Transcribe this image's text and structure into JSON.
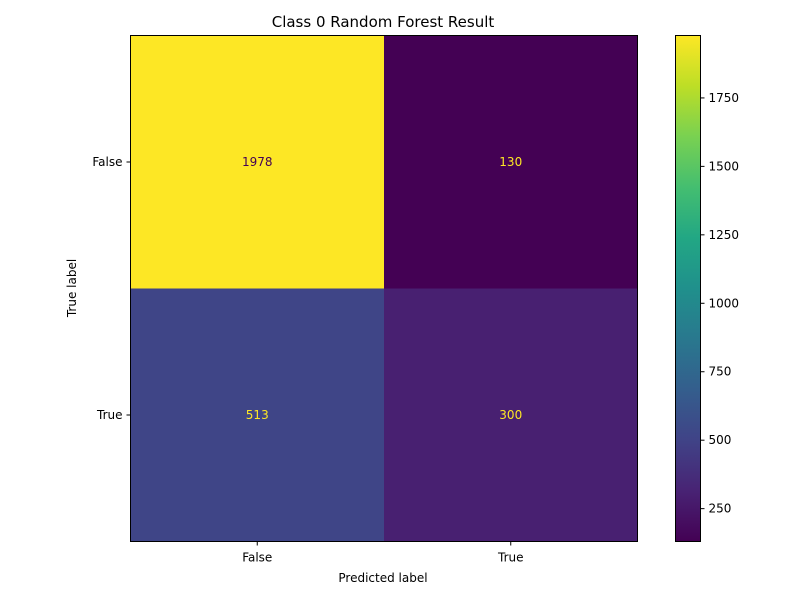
{
  "chart_data": {
    "type": "heatmap",
    "title": "Class 0 Random Forest Result",
    "xlabel": "Predicted label",
    "ylabel": "True label",
    "x_categories": [
      "False",
      "True"
    ],
    "y_categories": [
      "False",
      "True"
    ],
    "matrix": [
      [
        1978,
        130
      ],
      [
        513,
        300
      ]
    ],
    "colormap": "viridis",
    "colorbar": {
      "min": 130,
      "max": 1978,
      "ticks": [
        250,
        500,
        750,
        1000,
        1250,
        1500,
        1750
      ]
    },
    "text_color_on_dark": "#fde725",
    "text_color_on_light": "#440154",
    "grid": false
  }
}
